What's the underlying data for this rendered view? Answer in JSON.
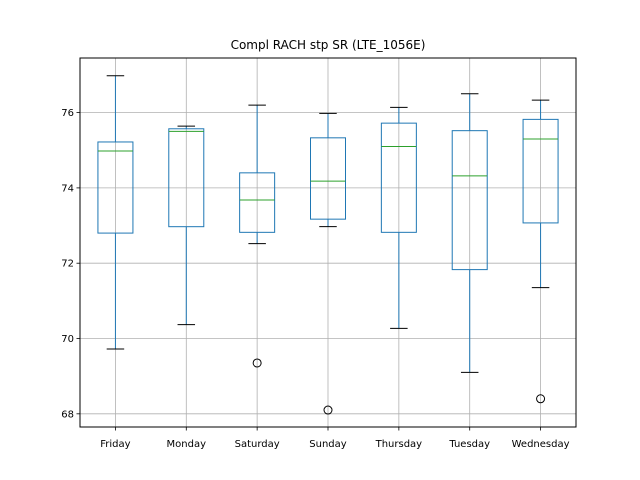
{
  "chart_data": {
    "type": "box",
    "title": "Compl RACH stp SR (LTE_1056E)",
    "xlabel": "",
    "ylabel": "",
    "categories": [
      "Friday",
      "Monday",
      "Saturday",
      "Sunday",
      "Thursday",
      "Tuesday",
      "Wednesday"
    ],
    "y_ticks": [
      68,
      70,
      72,
      74,
      76
    ],
    "ylim": [
      67.65,
      77.45
    ],
    "grid": true,
    "boxes": [
      {
        "category": "Friday",
        "whisker_low": 69.72,
        "q1": 72.8,
        "median": 74.98,
        "q3": 75.22,
        "whisker_high": 76.98,
        "outliers": []
      },
      {
        "category": "Monday",
        "whisker_low": 70.37,
        "q1": 72.97,
        "median": 75.5,
        "q3": 75.57,
        "whisker_high": 75.64,
        "outliers": []
      },
      {
        "category": "Saturday",
        "whisker_low": 72.52,
        "q1": 72.82,
        "median": 73.68,
        "q3": 74.4,
        "whisker_high": 76.2,
        "outliers": [
          69.35
        ]
      },
      {
        "category": "Sunday",
        "whisker_low": 72.97,
        "q1": 73.17,
        "median": 74.18,
        "q3": 75.33,
        "whisker_high": 75.98,
        "outliers": [
          68.1
        ]
      },
      {
        "category": "Thursday",
        "whisker_low": 70.27,
        "q1": 72.82,
        "median": 75.1,
        "q3": 75.72,
        "whisker_high": 76.14,
        "outliers": []
      },
      {
        "category": "Tuesday",
        "whisker_low": 69.1,
        "q1": 71.83,
        "median": 74.32,
        "q3": 75.52,
        "whisker_high": 76.5,
        "outliers": []
      },
      {
        "category": "Wednesday",
        "whisker_low": 71.35,
        "q1": 73.07,
        "median": 75.3,
        "q3": 75.82,
        "whisker_high": 76.33,
        "outliers": [
          68.4
        ]
      }
    ],
    "colors": {
      "box": "#1f77b4",
      "median": "#2ca02c",
      "whisker": "#1f77b4",
      "cap": "#000000",
      "grid": "#b0b0b0",
      "frame": "#000000",
      "outlier": "#000000"
    }
  }
}
